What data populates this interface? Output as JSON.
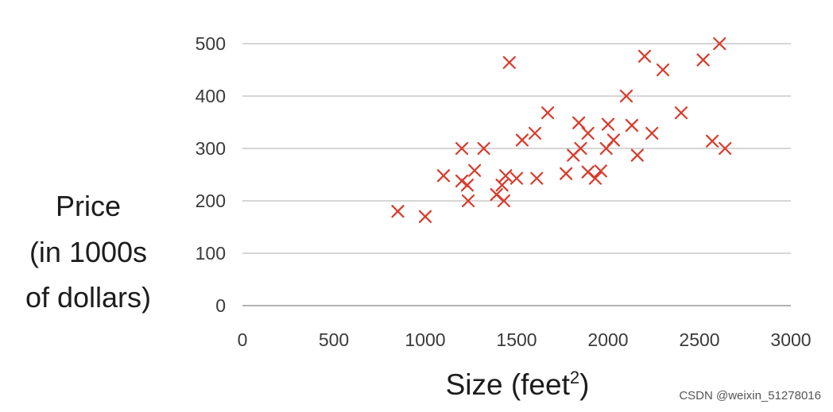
{
  "colors": {
    "marker": "#d93a2b",
    "grid": "#c9c9c9",
    "text": "#1c1c1c"
  },
  "chart_data": {
    "type": "scatter",
    "title": "",
    "ylabel_lines": [
      "Price",
      "(in 1000s",
      "of dollars)"
    ],
    "xlabel_text": "Size (feet",
    "xlabel_sup": "2",
    "xlabel_close": ")",
    "xlim": [
      0,
      3000
    ],
    "ylim": [
      0,
      500
    ],
    "xticks": [
      "0",
      "500",
      "1000",
      "1500",
      "2000",
      "2500",
      "3000"
    ],
    "yticks": [
      "0",
      "100",
      "200",
      "300",
      "400",
      "500"
    ],
    "grid": "horizontal",
    "marker": "x",
    "points": [
      {
        "x": 850,
        "y": 180
      },
      {
        "x": 1000,
        "y": 170
      },
      {
        "x": 1100,
        "y": 248
      },
      {
        "x": 1200,
        "y": 300
      },
      {
        "x": 1200,
        "y": 238
      },
      {
        "x": 1230,
        "y": 230
      },
      {
        "x": 1235,
        "y": 200
      },
      {
        "x": 1270,
        "y": 258
      },
      {
        "x": 1320,
        "y": 300
      },
      {
        "x": 1390,
        "y": 212
      },
      {
        "x": 1420,
        "y": 230
      },
      {
        "x": 1430,
        "y": 200
      },
      {
        "x": 1440,
        "y": 248
      },
      {
        "x": 1460,
        "y": 464
      },
      {
        "x": 1500,
        "y": 243
      },
      {
        "x": 1530,
        "y": 316
      },
      {
        "x": 1600,
        "y": 329
      },
      {
        "x": 1610,
        "y": 243
      },
      {
        "x": 1670,
        "y": 368
      },
      {
        "x": 1770,
        "y": 252
      },
      {
        "x": 1810,
        "y": 287
      },
      {
        "x": 1840,
        "y": 349
      },
      {
        "x": 1850,
        "y": 300
      },
      {
        "x": 1890,
        "y": 329
      },
      {
        "x": 1890,
        "y": 255
      },
      {
        "x": 1930,
        "y": 243
      },
      {
        "x": 1960,
        "y": 257
      },
      {
        "x": 1990,
        "y": 300
      },
      {
        "x": 2000,
        "y": 346
      },
      {
        "x": 2030,
        "y": 316
      },
      {
        "x": 2100,
        "y": 400
      },
      {
        "x": 2130,
        "y": 344
      },
      {
        "x": 2160,
        "y": 287
      },
      {
        "x": 2200,
        "y": 476
      },
      {
        "x": 2240,
        "y": 329
      },
      {
        "x": 2300,
        "y": 450
      },
      {
        "x": 2400,
        "y": 368
      },
      {
        "x": 2520,
        "y": 469
      },
      {
        "x": 2570,
        "y": 314
      },
      {
        "x": 2610,
        "y": 500
      },
      {
        "x": 2640,
        "y": 300
      }
    ]
  },
  "watermark": "CSDN @weixin_51278016"
}
